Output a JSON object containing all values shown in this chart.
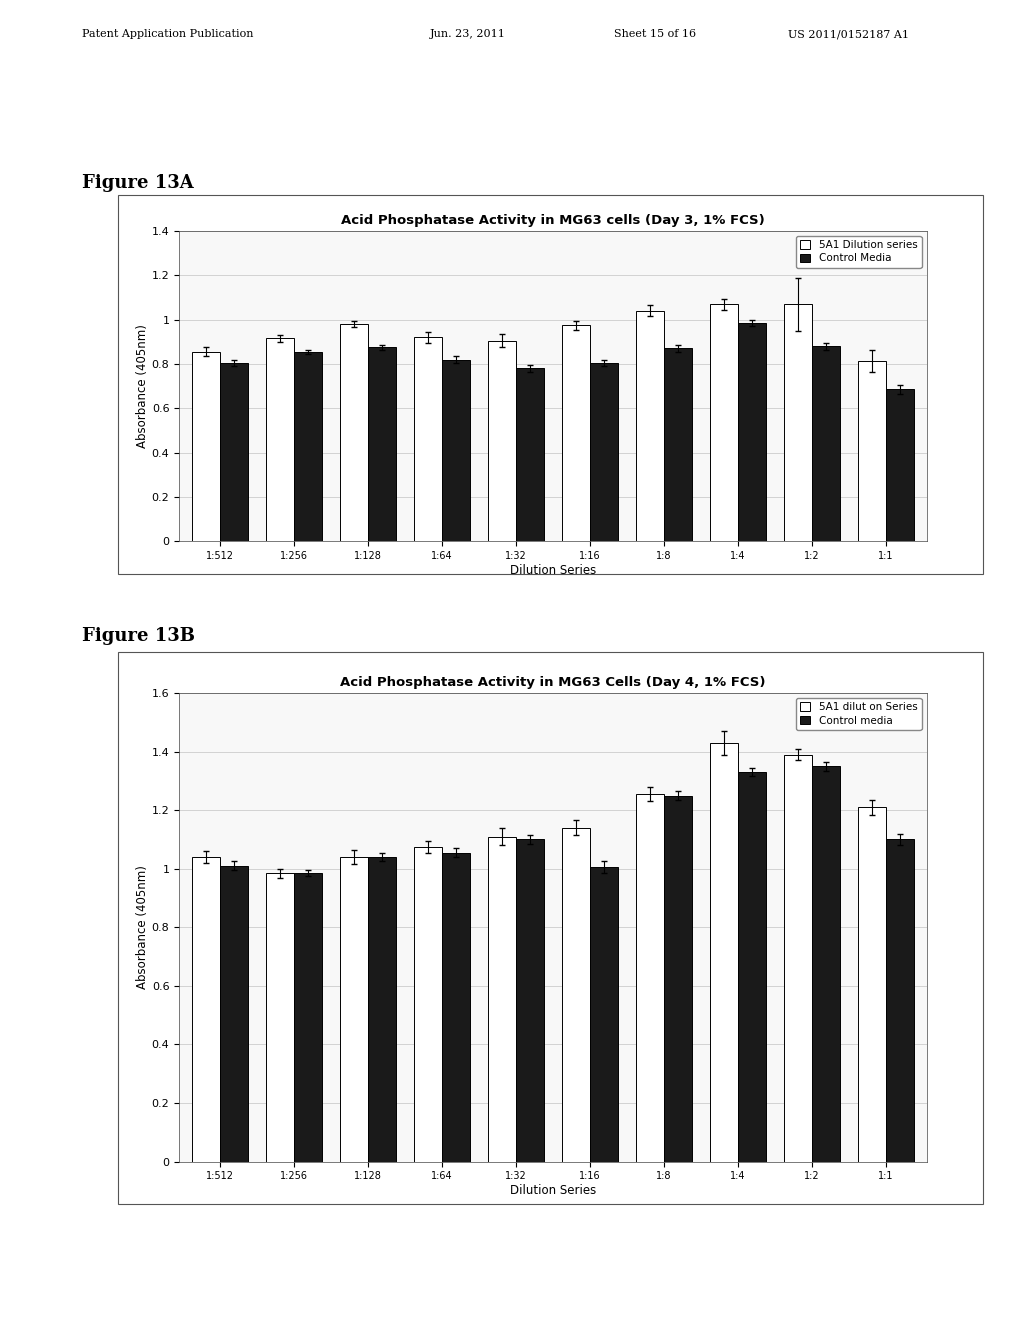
{
  "header_line1": "Patent Application Publication",
  "header_line2": "Jun. 23, 2011",
  "header_line3": "Sheet 15 of 16",
  "header_line4": "US 2011/0152187 A1",
  "fig_a_label": "Figure 13A",
  "fig_b_label": "Figure 13B",
  "categories": [
    "1:512",
    "1:256",
    "1:128",
    "1:64",
    "1:32",
    "1:16",
    "1:8",
    "1:4",
    "1:2",
    "1:1"
  ],
  "xlabel": "Dilution Series",
  "ylabel_a": "Absorbance (405nm)",
  "ylabel_b": "Absorbance (405nm)",
  "title_a": "Acid Phosphatase Activity in MG63 cells (Day 3, 1% FCS)",
  "title_b": "Acid Phosphatase Activity in MG63 Cells (Day 4, 1% FCS)",
  "legend_a": [
    "5A1 Dilution series",
    "Control Media"
  ],
  "legend_b": [
    "5A1 dilut on Series",
    "Control media"
  ],
  "fig_a": {
    "series1_vals": [
      0.855,
      0.915,
      0.98,
      0.92,
      0.905,
      0.975,
      1.04,
      1.07,
      1.07,
      0.815
    ],
    "series2_vals": [
      0.805,
      0.855,
      0.875,
      0.82,
      0.78,
      0.805,
      0.87,
      0.985,
      0.88,
      0.685
    ],
    "series1_err": [
      0.02,
      0.015,
      0.015,
      0.025,
      0.03,
      0.02,
      0.025,
      0.025,
      0.12,
      0.05
    ],
    "series2_err": [
      0.015,
      0.01,
      0.01,
      0.015,
      0.015,
      0.015,
      0.015,
      0.015,
      0.015,
      0.02
    ],
    "ylim": [
      0,
      1.4
    ],
    "yticks": [
      0,
      0.2,
      0.4,
      0.6,
      0.8,
      1.0,
      1.2,
      1.4
    ]
  },
  "fig_b": {
    "series1_vals": [
      1.04,
      0.985,
      1.04,
      1.075,
      1.11,
      1.14,
      1.255,
      1.43,
      1.39,
      1.21
    ],
    "series2_vals": [
      1.01,
      0.985,
      1.04,
      1.055,
      1.1,
      1.005,
      1.25,
      1.33,
      1.35,
      1.1
    ],
    "series1_err": [
      0.02,
      0.015,
      0.025,
      0.02,
      0.03,
      0.025,
      0.025,
      0.04,
      0.02,
      0.025
    ],
    "series2_err": [
      0.015,
      0.01,
      0.015,
      0.015,
      0.015,
      0.02,
      0.015,
      0.015,
      0.015,
      0.02
    ],
    "ylim": [
      0,
      1.6
    ],
    "yticks": [
      0,
      0.2,
      0.4,
      0.6,
      0.8,
      1.0,
      1.2,
      1.4,
      1.6
    ]
  },
  "bar_color_white": "#ffffff",
  "bar_color_black": "#1a1a1a",
  "bar_edgecolor": "#000000",
  "page_bg": "#ffffff",
  "chart_bg": "#f8f8f8",
  "chart_frame_color": "#888888",
  "grid_color": "#cccccc"
}
